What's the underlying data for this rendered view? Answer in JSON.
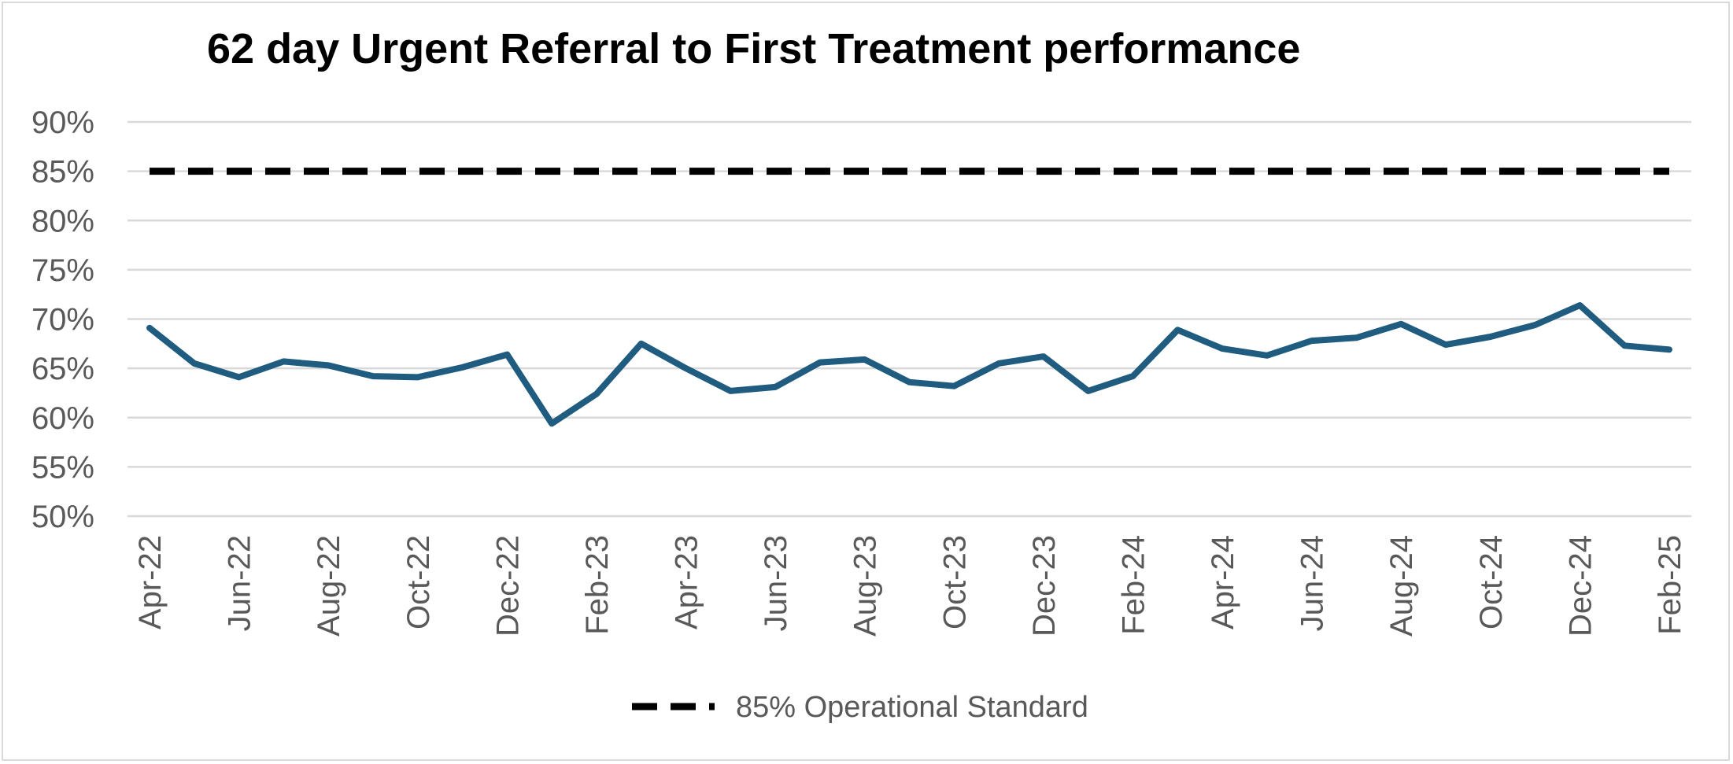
{
  "chart_data": {
    "type": "line",
    "title": "62 day Urgent Referral to First Treatment performance",
    "xlabel": "",
    "ylabel": "",
    "ylim": [
      0.5,
      0.9
    ],
    "y_ticks": [
      "50%",
      "55%",
      "60%",
      "65%",
      "70%",
      "75%",
      "80%",
      "85%",
      "90%"
    ],
    "y_tick_values": [
      0.5,
      0.55,
      0.6,
      0.65,
      0.7,
      0.75,
      0.8,
      0.85,
      0.9
    ],
    "grid": true,
    "legend_position": "bottom",
    "x": [
      "Apr-22",
      "May-22",
      "Jun-22",
      "Jul-22",
      "Aug-22",
      "Sep-22",
      "Oct-22",
      "Nov-22",
      "Dec-22",
      "Jan-23",
      "Feb-23",
      "Mar-23",
      "Apr-23",
      "May-23",
      "Jun-23",
      "Jul-23",
      "Aug-23",
      "Sep-23",
      "Oct-23",
      "Nov-23",
      "Dec-23",
      "Jan-24",
      "Feb-24",
      "Mar-24",
      "Apr-24",
      "May-24",
      "Jun-24",
      "Jul-24",
      "Aug-24",
      "Sep-24",
      "Oct-24",
      "Nov-24",
      "Dec-24",
      "Jan-25",
      "Feb-25"
    ],
    "x_tick_labels": [
      "Apr-22",
      "Jun-22",
      "Aug-22",
      "Oct-22",
      "Dec-22",
      "Feb-23",
      "Apr-23",
      "Jun-23",
      "Aug-23",
      "Oct-23",
      "Dec-23",
      "Feb-24",
      "Apr-24",
      "Jun-24",
      "Aug-24",
      "Oct-24",
      "Dec-24",
      "Feb-25"
    ],
    "series": [
      {
        "color": "#1f5c7f",
        "values": [
          0.691,
          0.655,
          0.641,
          0.657,
          0.653,
          0.642,
          0.641,
          0.651,
          0.664,
          0.594,
          0.624,
          0.675,
          0.65,
          0.627,
          0.631,
          0.656,
          0.659,
          0.636,
          0.632,
          0.655,
          0.662,
          0.627,
          0.642,
          0.689,
          0.67,
          0.663,
          0.678,
          0.681,
          0.695,
          0.674,
          0.682,
          0.694,
          0.714,
          0.673,
          0.669
        ]
      },
      {
        "name": "85% Operational Standard",
        "color": "#000000",
        "style": "dashed",
        "values": [
          0.85,
          0.85,
          0.85,
          0.85,
          0.85,
          0.85,
          0.85,
          0.85,
          0.85,
          0.85,
          0.85,
          0.85,
          0.85,
          0.85,
          0.85,
          0.85,
          0.85,
          0.85,
          0.85,
          0.85,
          0.85,
          0.85,
          0.85,
          0.85,
          0.85,
          0.85,
          0.85,
          0.85,
          0.85,
          0.85,
          0.85,
          0.85,
          0.85,
          0.85,
          0.85
        ]
      }
    ],
    "legend": [
      {
        "label": "85% Operational Standard",
        "color": "#000000",
        "style": "dashed"
      }
    ]
  }
}
